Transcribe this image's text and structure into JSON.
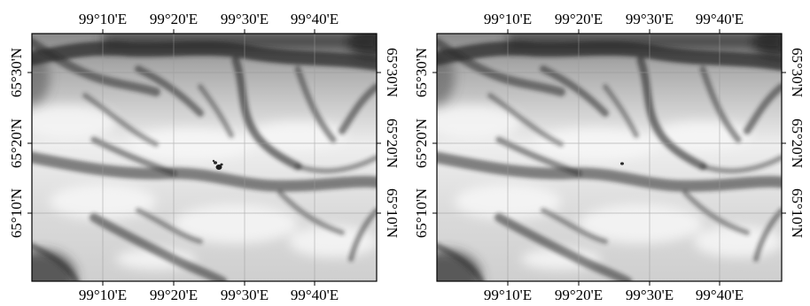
{
  "figure": {
    "panels": [
      {
        "id": "left",
        "lon_ticks": [
          "99°10'E",
          "99°20'E",
          "99°30'E",
          "99°40'E"
        ],
        "lat_ticks": [
          "65°30'N",
          "65°20'N",
          "65°10'N"
        ],
        "feature": "dark blemish artifacts near center"
      },
      {
        "id": "right",
        "lon_ticks": [
          "99°10'E",
          "99°20'E",
          "99°30'E",
          "99°40'E"
        ],
        "lat_ticks": [
          "65°30'N",
          "65°20'N",
          "65°10'N"
        ],
        "feature": "single small dark spot near center"
      }
    ],
    "colors": {
      "terrain_light": "#eeeeee",
      "terrain_mid": "#bdbdbd",
      "terrain_dark": "#2a2a2a",
      "graticule": "#9a9a9a"
    },
    "graticule": "on",
    "background": "grayscale elevation hillshade"
  }
}
